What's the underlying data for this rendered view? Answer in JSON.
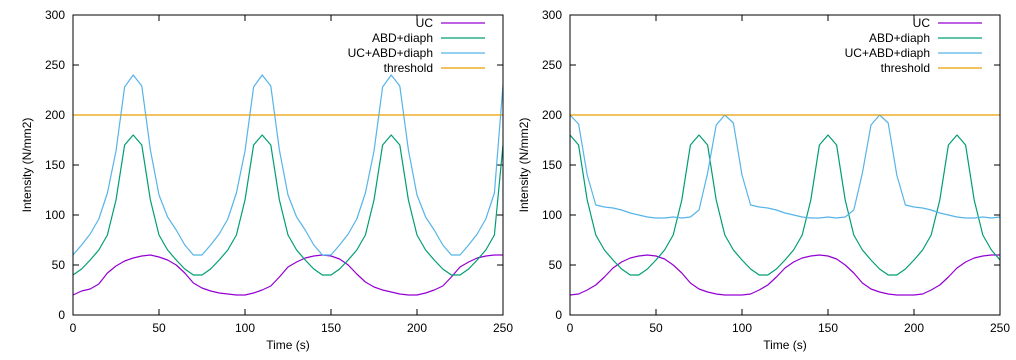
{
  "colors": {
    "UC": "#9400d3",
    "ABD+diaph": "#009e73",
    "UC+ABD+diaph": "#56b4e9",
    "threshold": "#e69f00"
  },
  "chart_data": [
    {
      "type": "line",
      "xlabel": "Time (s)",
      "ylabel": "Intensity (N/mm2)",
      "xlim": [
        0,
        250
      ],
      "ylim": [
        0,
        300
      ],
      "xticks": [
        "0",
        "50",
        "100",
        "150",
        "200",
        "250"
      ],
      "yticks": [
        "0",
        "50",
        "100",
        "150",
        "200",
        "250",
        "300"
      ],
      "legend_position": "top-right",
      "series": [
        {
          "name": "UC",
          "x": [
            0,
            5,
            10,
            15,
            20,
            25,
            30,
            35,
            40,
            45,
            50,
            55,
            60,
            65,
            70,
            75,
            80,
            85,
            90,
            95,
            100,
            105,
            110,
            115,
            120,
            125,
            130,
            135,
            140,
            145,
            150,
            155,
            160,
            165,
            170,
            175,
            180,
            185,
            190,
            195,
            200,
            205,
            210,
            215,
            220,
            225,
            230,
            235,
            240,
            245,
            250
          ],
          "y": [
            20,
            24,
            26,
            31,
            42,
            49,
            54,
            57,
            59,
            60,
            58,
            55,
            50,
            42,
            32,
            27,
            24,
            22,
            21,
            20,
            20,
            22,
            25,
            29,
            38,
            48,
            53,
            57,
            59,
            60,
            59,
            56,
            50,
            41,
            33,
            28,
            25,
            23,
            21,
            20,
            20,
            22,
            25,
            29,
            38,
            48,
            53,
            57,
            59,
            60,
            60
          ]
        },
        {
          "name": "ABD+diaph",
          "x": [
            0,
            5,
            10,
            15,
            20,
            25,
            30,
            35,
            40,
            45,
            50,
            55,
            60,
            65,
            70,
            75,
            80,
            85,
            90,
            95,
            100,
            105,
            110,
            115,
            120,
            125,
            130,
            135,
            140,
            145,
            150,
            155,
            160,
            165,
            170,
            175,
            180,
            185,
            190,
            195,
            200,
            205,
            210,
            215,
            220,
            225,
            230,
            235,
            240,
            245,
            250
          ],
          "y": [
            40,
            46,
            55,
            65,
            80,
            115,
            170,
            180,
            170,
            115,
            80,
            65,
            55,
            46,
            40,
            40,
            46,
            55,
            65,
            80,
            115,
            170,
            180,
            170,
            115,
            80,
            65,
            55,
            46,
            40,
            40,
            46,
            55,
            65,
            80,
            115,
            170,
            180,
            170,
            115,
            80,
            65,
            55,
            46,
            40,
            40,
            46,
            55,
            65,
            80,
            170
          ]
        },
        {
          "name": "UC+ABD+diaph",
          "x": [
            0,
            5,
            10,
            15,
            20,
            25,
            30,
            35,
            40,
            45,
            50,
            55,
            60,
            65,
            70,
            75,
            80,
            85,
            90,
            95,
            100,
            105,
            110,
            115,
            120,
            125,
            130,
            135,
            140,
            145,
            150,
            155,
            160,
            165,
            170,
            175,
            180,
            185,
            190,
            195,
            200,
            205,
            210,
            215,
            220,
            225,
            230,
            235,
            240,
            245,
            250
          ],
          "y": [
            60,
            70,
            81,
            96,
            122,
            164,
            228,
            240,
            229,
            165,
            120,
            98,
            85,
            70,
            60,
            60,
            70,
            81,
            96,
            122,
            164,
            228,
            240,
            229,
            165,
            120,
            98,
            85,
            70,
            60,
            60,
            70,
            81,
            96,
            122,
            164,
            228,
            240,
            229,
            165,
            120,
            98,
            85,
            70,
            60,
            60,
            70,
            81,
            96,
            122,
            230
          ]
        },
        {
          "name": "threshold",
          "x": [
            0,
            250
          ],
          "y": [
            200,
            200
          ]
        }
      ]
    },
    {
      "type": "line",
      "xlabel": "Time (s)",
      "ylabel": "Intensity (N/mm2)",
      "xlim": [
        0,
        250
      ],
      "ylim": [
        0,
        300
      ],
      "xticks": [
        "0",
        "50",
        "100",
        "150",
        "200",
        "250"
      ],
      "yticks": [
        "0",
        "50",
        "100",
        "150",
        "200",
        "250",
        "300"
      ],
      "legend_position": "top-right",
      "series": [
        {
          "name": "UC",
          "x": [
            0,
            5,
            10,
            15,
            20,
            25,
            30,
            35,
            40,
            45,
            50,
            55,
            60,
            65,
            70,
            75,
            80,
            85,
            90,
            95,
            100,
            105,
            110,
            115,
            120,
            125,
            130,
            135,
            140,
            145,
            150,
            155,
            160,
            165,
            170,
            175,
            180,
            185,
            190,
            195,
            200,
            205,
            210,
            215,
            220,
            225,
            230,
            235,
            240,
            245,
            250
          ],
          "y": [
            20,
            21,
            25,
            30,
            38,
            47,
            53,
            57,
            59,
            60,
            59,
            56,
            50,
            42,
            32,
            26,
            23,
            21,
            20,
            20,
            20,
            21,
            25,
            30,
            38,
            47,
            53,
            57,
            59,
            60,
            59,
            56,
            50,
            42,
            32,
            26,
            23,
            21,
            20,
            20,
            20,
            21,
            25,
            30,
            38,
            47,
            53,
            57,
            59,
            60,
            60
          ]
        },
        {
          "name": "ABD+diaph",
          "x": [
            0,
            5,
            10,
            15,
            20,
            25,
            30,
            35,
            40,
            45,
            50,
            55,
            60,
            65,
            70,
            75,
            80,
            85,
            90,
            95,
            100,
            105,
            110,
            115,
            120,
            125,
            130,
            135,
            140,
            145,
            150,
            155,
            160,
            165,
            170,
            175,
            180,
            185,
            190,
            195,
            200,
            205,
            210,
            215,
            220,
            225,
            230,
            235,
            240,
            245,
            250
          ],
          "y": [
            180,
            170,
            115,
            80,
            65,
            55,
            46,
            40,
            40,
            46,
            55,
            65,
            80,
            115,
            170,
            180,
            170,
            115,
            80,
            65,
            55,
            46,
            40,
            40,
            46,
            55,
            65,
            80,
            115,
            170,
            180,
            170,
            115,
            80,
            65,
            55,
            46,
            40,
            40,
            46,
            55,
            65,
            80,
            115,
            170,
            180,
            170,
            115,
            80,
            65,
            55
          ]
        },
        {
          "name": "UC+ABD+diaph",
          "x": [
            0,
            5,
            10,
            15,
            20,
            25,
            30,
            35,
            40,
            45,
            50,
            55,
            60,
            65,
            70,
            75,
            80,
            85,
            90,
            95,
            100,
            105,
            110,
            115,
            120,
            125,
            130,
            135,
            140,
            145,
            150,
            155,
            160,
            165,
            170,
            175,
            180,
            185,
            190,
            195,
            200,
            205,
            210,
            215,
            220,
            225,
            230,
            235,
            240,
            245,
            250
          ],
          "y": [
            200,
            191,
            140,
            110,
            108,
            107,
            105,
            102,
            100,
            98,
            97,
            97,
            98,
            97,
            98,
            105,
            142,
            190,
            200,
            192,
            140,
            110,
            108,
            107,
            105,
            102,
            100,
            98,
            97,
            97,
            98,
            97,
            98,
            105,
            142,
            190,
            200,
            192,
            140,
            110,
            108,
            107,
            105,
            102,
            100,
            98,
            97,
            97,
            98,
            97,
            98
          ]
        },
        {
          "name": "threshold",
          "x": [
            0,
            250
          ],
          "y": [
            200,
            200
          ]
        }
      ]
    }
  ]
}
